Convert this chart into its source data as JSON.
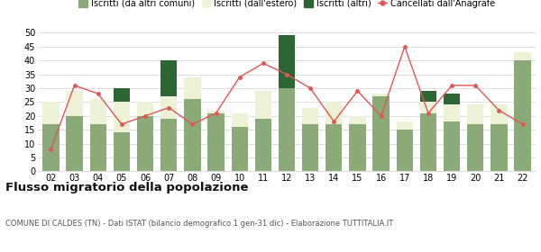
{
  "years": [
    "02",
    "03",
    "04",
    "05",
    "06",
    "07",
    "08",
    "09",
    "10",
    "11",
    "12",
    "13",
    "14",
    "15",
    "16",
    "17",
    "18",
    "19",
    "20",
    "21",
    "22"
  ],
  "iscritti_altri_comuni": [
    17,
    20,
    17,
    14,
    20,
    19,
    26,
    21,
    16,
    19,
    30,
    17,
    17,
    17,
    27,
    15,
    21,
    18,
    17,
    17,
    40
  ],
  "iscritti_estero": [
    8,
    9,
    9,
    11,
    5,
    8,
    8,
    1,
    5,
    10,
    0,
    6,
    8,
    3,
    1,
    3,
    4,
    6,
    7,
    7,
    3
  ],
  "iscritti_altri": [
    0,
    0,
    0,
    5,
    0,
    13,
    0,
    0,
    0,
    0,
    19,
    0,
    0,
    0,
    0,
    0,
    4,
    4,
    0,
    0,
    0
  ],
  "cancellati": [
    8,
    31,
    28,
    17,
    20,
    23,
    17,
    21,
    34,
    39,
    35,
    30,
    18,
    29,
    20,
    45,
    21,
    31,
    31,
    22,
    17
  ],
  "color_altri_comuni": "#8aaa78",
  "color_estero": "#edf2d6",
  "color_altri": "#2d6635",
  "color_cancellati": "#e05555",
  "ylim": [
    0,
    50
  ],
  "yticks": [
    0,
    5,
    10,
    15,
    20,
    25,
    30,
    35,
    40,
    45,
    50
  ],
  "title": "Flusso migratorio della popolazione",
  "subtitle": "COMUNE DI CALDES (TN) - Dati ISTAT (bilancio demografico 1 gen-31 dic) - Elaborazione TUTTITALIA.IT",
  "legend_labels": [
    "Iscritti (da altri comuni)",
    "Iscritti (dall'estero)",
    "Iscritti (altri)",
    "Cancellati dall'Anagrafe"
  ],
  "background_color": "#ffffff",
  "grid_color": "#dddddd"
}
